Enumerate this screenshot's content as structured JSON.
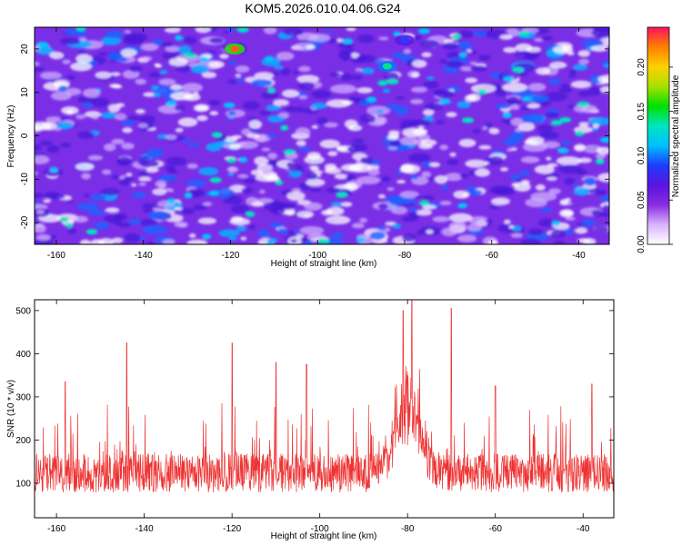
{
  "title": "KOM5.2026.010.04.06.G24",
  "chart_data": [
    {
      "type": "heatmap",
      "xlabel": "Height of straight line (km)",
      "ylabel": "Frequency (Hz)",
      "xlim": [
        -165,
        -33
      ],
      "ylim": [
        -25,
        25
      ],
      "x_ticks": [
        -160,
        -140,
        -120,
        -100,
        -80,
        -60,
        -40
      ],
      "y_ticks": [
        -20,
        -10,
        0,
        10,
        20
      ],
      "colorbar": {
        "label": "Normalized spectral amplitude",
        "range": [
          0.0,
          0.245
        ],
        "ticks": [
          0.0,
          0.05,
          0.1,
          0.15,
          0.2
        ],
        "tick_labels": [
          "0.00",
          "0.05",
          "0.10",
          "0.15",
          "0.20"
        ],
        "colormap": [
          "#ffffff",
          "#d9b3ff",
          "#8a2be2",
          "#5a14e0",
          "#1f3cff",
          "#00bfff",
          "#00e5c0",
          "#00e000",
          "#a8e000",
          "#ffd000",
          "#ff8000",
          "#ff1060"
        ]
      },
      "notable_peaks": [
        {
          "x": -119,
          "y": 20,
          "value": 0.23
        },
        {
          "x": -84,
          "y": 16,
          "value": 0.14
        },
        {
          "x": -80,
          "y": 22,
          "value": 0.09
        }
      ],
      "background_color": "#7a2fe6"
    },
    {
      "type": "line",
      "xlabel": "Height of straight line (km)",
      "ylabel": "SNR (10 * v/v)",
      "xlim": [
        -165,
        -33
      ],
      "ylim": [
        20,
        525
      ],
      "x_ticks": [
        -160,
        -140,
        -120,
        -100,
        -80,
        -60,
        -40
      ],
      "y_ticks": [
        100,
        200,
        300,
        400,
        500
      ],
      "series_color": "#ee3333",
      "baseline": 110,
      "noise_spread": 90,
      "peaks": [
        {
          "x": -158,
          "y": 335
        },
        {
          "x": -144,
          "y": 425
        },
        {
          "x": -120,
          "y": 425
        },
        {
          "x": -110,
          "y": 380
        },
        {
          "x": -103,
          "y": 375
        },
        {
          "x": -81,
          "y": 500
        },
        {
          "x": -79,
          "y": 525
        },
        {
          "x": -70,
          "y": 505
        },
        {
          "x": -60,
          "y": 325
        },
        {
          "x": -38,
          "y": 330
        }
      ]
    }
  ]
}
